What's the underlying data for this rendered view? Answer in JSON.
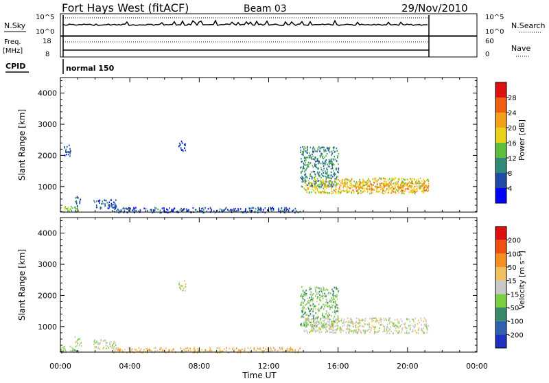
{
  "header": {
    "station": "Fort Hays West (fitACF)",
    "beam": "Beam 03",
    "date": "29/Nov/2010"
  },
  "top_panels": {
    "nsky_label": "N.Sky",
    "nsky_ticks": [
      "10^5",
      "10^0"
    ],
    "nsearch_label": "N.Search",
    "nsearch_ticks": [
      "10^5",
      "10^0"
    ],
    "freq_label": "Freq.",
    "freq_unit": "[MHz]",
    "freq_ticks": [
      "18",
      "8"
    ],
    "nave_label": "Nave",
    "nave_ticks": [
      "60",
      "0"
    ],
    "cpid_label": "CPID",
    "cpid_value": "normal 150"
  },
  "axes": {
    "ylabel": "Slant Range [km]",
    "xlabel": "Time UT",
    "y_ticks": [
      "1000",
      "2000",
      "3000",
      "4000"
    ],
    "x_ticks": [
      "00:00",
      "04:00",
      "08:00",
      "12:00",
      "16:00",
      "20:00",
      "00:00"
    ]
  },
  "colorbars": {
    "power": {
      "label": "Power [dB]",
      "ticks": [
        "4",
        "8",
        "12",
        "16",
        "20",
        "24",
        "28"
      ],
      "colors": [
        "#0000ff",
        "#1f4aa8",
        "#2f8a7a",
        "#5fbf3a",
        "#e8d21a",
        "#f5a01a",
        "#f06010",
        "#e01010"
      ]
    },
    "velocity": {
      "label": "Velocity [m s⁻¹]",
      "ticks": [
        "200",
        "100",
        "50",
        "15",
        "-15",
        "-50",
        "-100",
        "-200"
      ],
      "colors": [
        "#2030c0",
        "#3060b0",
        "#3a8a6a",
        "#7ad040",
        "#c8c8c8",
        "#f0c060",
        "#f59020",
        "#f05010",
        "#e01010"
      ]
    }
  },
  "chart_data": [
    {
      "type": "heatmap",
      "title": "Power",
      "xlabel": "Time UT",
      "ylabel": "Slant Range [km]",
      "xlim": [
        0,
        24
      ],
      "ylim": [
        180,
        4500
      ],
      "colorbar": "Power [dB]",
      "regions": [
        {
          "t": [
            0.0,
            1.0
          ],
          "r": [
            180,
            400
          ],
          "level": 3
        },
        {
          "t": [
            0.2,
            0.6
          ],
          "r": [
            2000,
            2400
          ],
          "level": 1
        },
        {
          "t": [
            0.8,
            1.2
          ],
          "r": [
            400,
            700
          ],
          "level": 1
        },
        {
          "t": [
            1.9,
            3.2
          ],
          "r": [
            300,
            600
          ],
          "level": 1
        },
        {
          "t": [
            3.0,
            13.8
          ],
          "r": [
            180,
            350
          ],
          "level": 1
        },
        {
          "t": [
            6.8,
            7.2
          ],
          "r": [
            2150,
            2500
          ],
          "level": 1
        },
        {
          "t": [
            13.8,
            16.0
          ],
          "r": [
            1000,
            2300
          ],
          "level": 2
        },
        {
          "t": [
            14.0,
            21.2
          ],
          "r": [
            800,
            1300
          ],
          "level": 4
        },
        {
          "t": [
            16.0,
            21.2
          ],
          "r": [
            850,
            1150
          ],
          "level": 5
        }
      ]
    },
    {
      "type": "heatmap",
      "title": "Velocity",
      "xlabel": "Time UT",
      "ylabel": "Slant Range [km]",
      "xlim": [
        0,
        24
      ],
      "ylim": [
        180,
        4500
      ],
      "colorbar": "Velocity [m s⁻¹]",
      "regions": [
        {
          "t": [
            0.0,
            1.0
          ],
          "r": [
            180,
            400
          ],
          "level": 3
        },
        {
          "t": [
            0.8,
            1.2
          ],
          "r": [
            400,
            700
          ],
          "level": 4
        },
        {
          "t": [
            1.9,
            3.2
          ],
          "r": [
            300,
            600
          ],
          "level": 4
        },
        {
          "t": [
            3.0,
            13.8
          ],
          "r": [
            180,
            350
          ],
          "level": 5
        },
        {
          "t": [
            6.8,
            7.2
          ],
          "r": [
            2150,
            2500
          ],
          "level": 4
        },
        {
          "t": [
            13.8,
            16.0
          ],
          "r": [
            1000,
            2300
          ],
          "level": 3
        },
        {
          "t": [
            14.0,
            21.2
          ],
          "r": [
            800,
            1300
          ],
          "level": 4
        }
      ]
    }
  ]
}
